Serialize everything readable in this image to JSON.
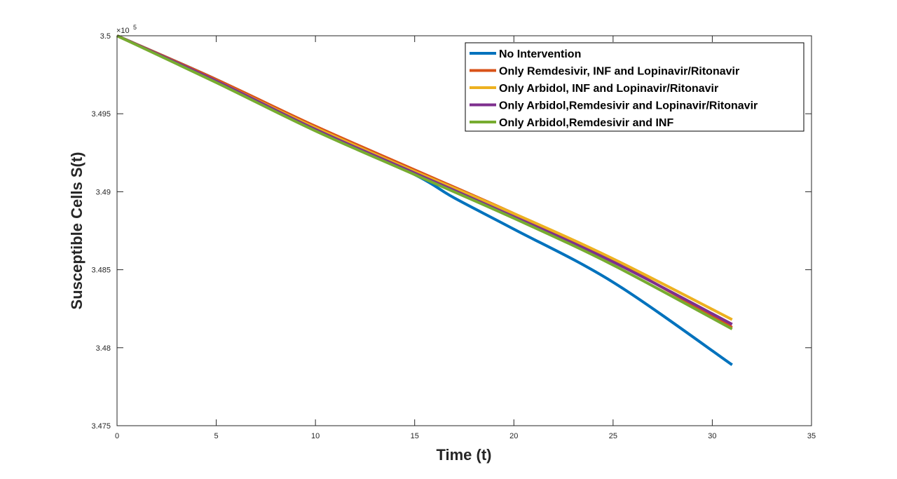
{
  "chart_data": {
    "type": "line",
    "xlabel": "Time (t)",
    "ylabel": "Susceptible Cells S(t)",
    "xlim": [
      0,
      35
    ],
    "ylim": [
      3.475,
      3.5
    ],
    "y_exponent_label": "×10",
    "y_exponent_power": "5",
    "x_ticks": [
      "0",
      "5",
      "10",
      "15",
      "20",
      "25",
      "30",
      "35"
    ],
    "y_ticks": [
      "3.475",
      "3.48",
      "3.485",
      "3.49",
      "3.495",
      "3.5"
    ],
    "grid": false,
    "legend_position": "top-right",
    "series": [
      {
        "name": "No Intervention",
        "color": "#0072BD",
        "x": [
          0,
          5,
          10,
          15,
          17,
          20,
          25,
          31
        ],
        "y": [
          3.5,
          3.4972,
          3.4941,
          3.4911,
          3.4896,
          3.4876,
          3.4842,
          3.4789
        ]
      },
      {
        "name": "Only Remdesivir, INF and Lopinavir/Ritonavir",
        "color": "#D95319",
        "x": [
          0,
          5,
          10,
          15,
          20,
          25,
          31
        ],
        "y": [
          3.5,
          3.4972,
          3.4942,
          3.4914,
          3.4886,
          3.4856,
          3.4813
        ]
      },
      {
        "name": "Only Arbidol, INF and Lopinavir/Ritonavir",
        "color": "#EDB120",
        "x": [
          0,
          5,
          10,
          15,
          20,
          25,
          31
        ],
        "y": [
          3.5,
          3.4971,
          3.4941,
          3.4913,
          3.4886,
          3.4857,
          3.4818
        ]
      },
      {
        "name": "Only Arbidol,Remdesivir and Lopinavir/Ritonavir",
        "color": "#7E2F8E",
        "x": [
          0,
          5,
          10,
          15,
          20,
          25,
          31
        ],
        "y": [
          3.5,
          3.4971,
          3.494,
          3.4912,
          3.4884,
          3.4855,
          3.4815
        ]
      },
      {
        "name": "Only Arbidol,Remdesivir and INF",
        "color": "#77AC30",
        "x": [
          0,
          5,
          10,
          15,
          20,
          25,
          31
        ],
        "y": [
          3.5,
          3.497,
          3.4939,
          3.4911,
          3.4883,
          3.4853,
          3.4812
        ]
      }
    ]
  }
}
